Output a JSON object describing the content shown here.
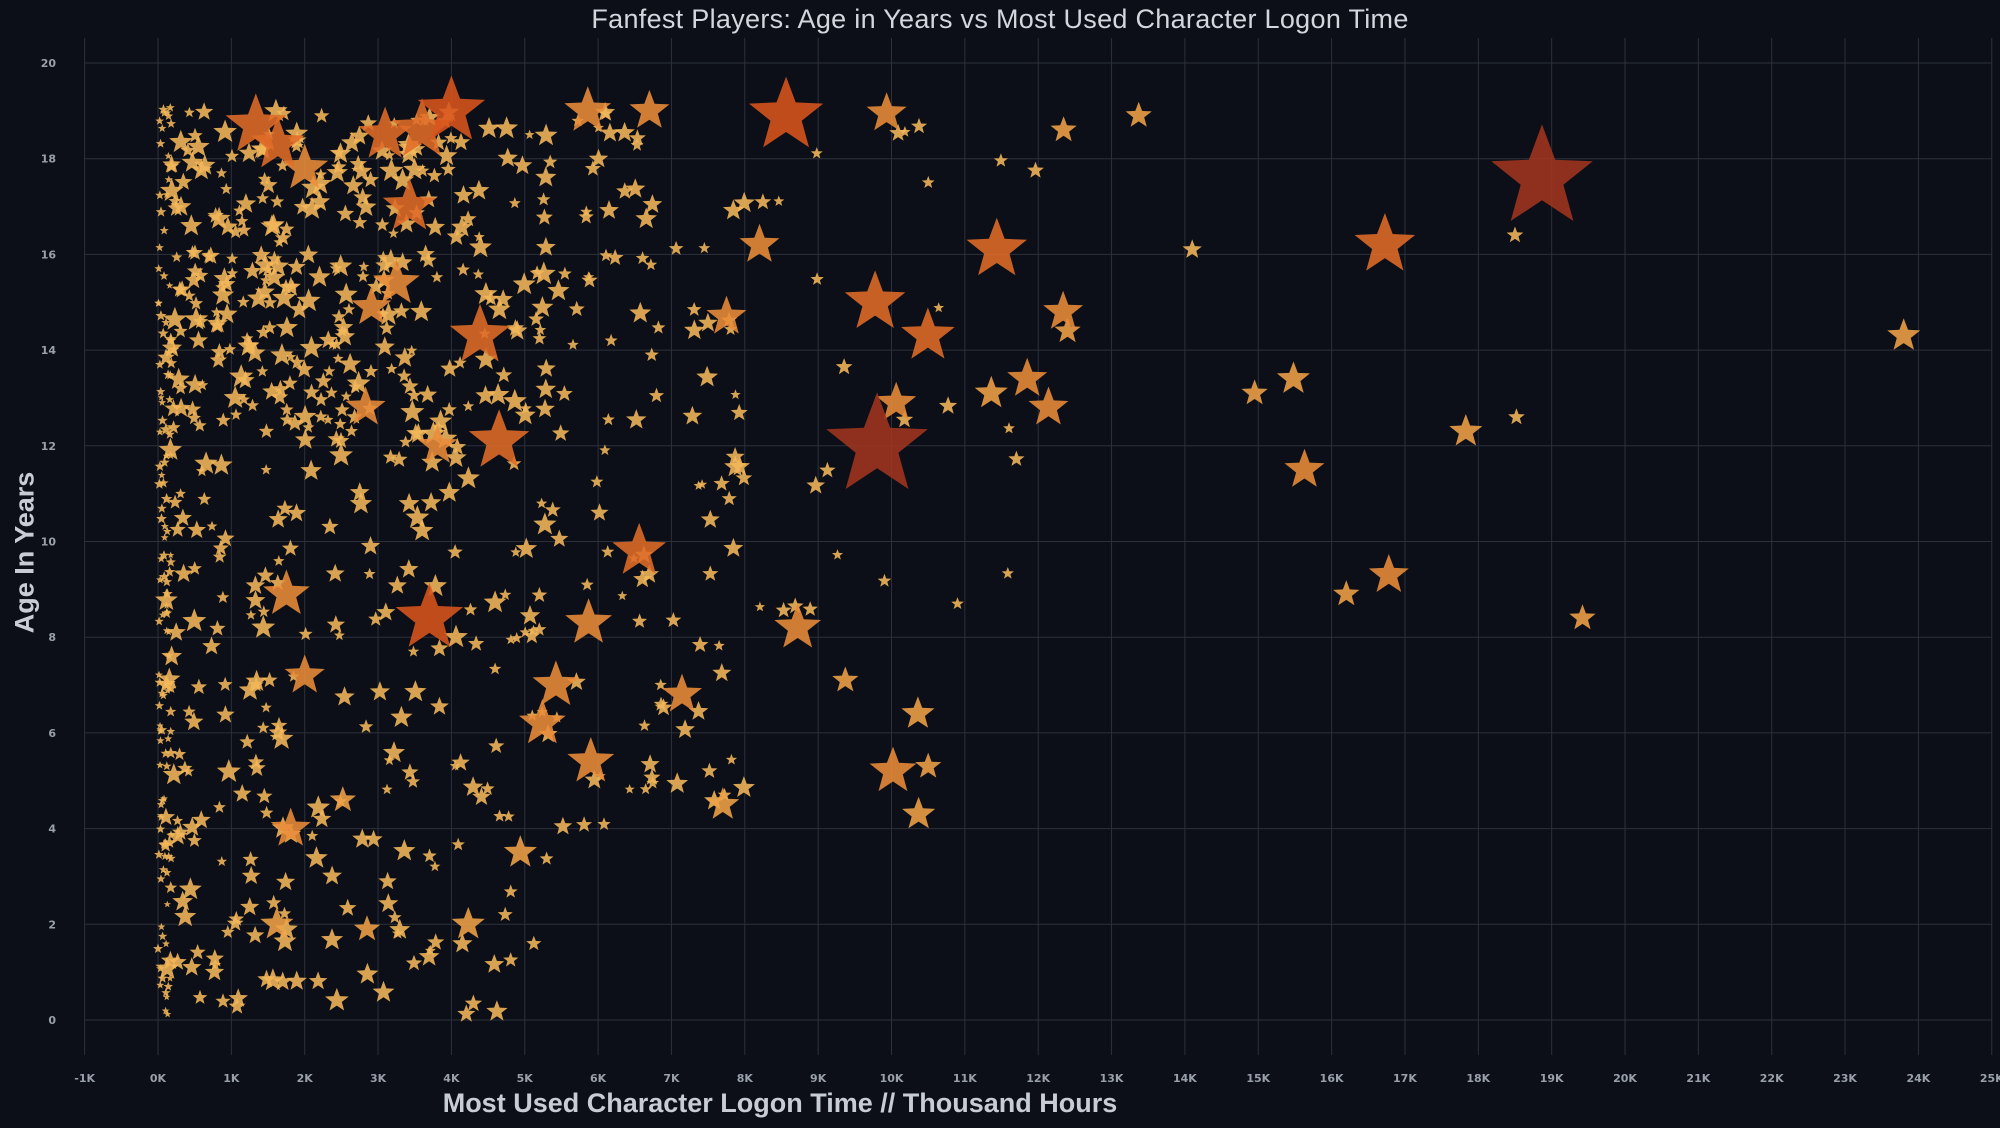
{
  "chart_data": {
    "type": "scatter",
    "marker": "star",
    "title": "Fanfest Players: Age in Years vs Most Used Character Logon Time",
    "xlabel": "Most Used Character Logon Time // Thousand Hours",
    "ylabel": "Age In Years",
    "xlim": [
      -1500,
      25000
    ],
    "ylim": [
      -0.9,
      20.5
    ],
    "x_ticks": [
      -1000,
      0,
      1000,
      2000,
      3000,
      4000,
      5000,
      6000,
      7000,
      8000,
      9000,
      10000,
      11000,
      12000,
      13000,
      14000,
      15000,
      16000,
      17000,
      18000,
      19000,
      20000,
      21000,
      22000,
      23000,
      24000,
      25000
    ],
    "x_tick_labels": [
      "-1K",
      "0K",
      "1K",
      "2K",
      "3K",
      "4K",
      "5K",
      "6K",
      "7K",
      "8K",
      "9K",
      "10K",
      "11K",
      "12K",
      "13K",
      "14K",
      "15K",
      "16K",
      "17K",
      "18K",
      "19K",
      "20K",
      "21K",
      "22K",
      "23K",
      "24K",
      "25K"
    ],
    "y_ticks": [
      0,
      2,
      4,
      6,
      8,
      10,
      12,
      14,
      16,
      18,
      20
    ],
    "y_tick_labels": [
      "0",
      "2",
      "4",
      "6",
      "8",
      "10",
      "12",
      "14",
      "16",
      "18",
      "20"
    ],
    "grid": true,
    "size_encoding": "star size and color scale with logon time weight (light yellow-orange = small, dark red = largest)",
    "colors": {
      "background": "#0c0f17",
      "small": "#f2b456",
      "medium": "#ea8a34",
      "large": "#dc5f22",
      "largest": "#a0361f",
      "grid": "#2b303b"
    },
    "points": [
      [
        1334,
        18.7,
        4
      ],
      [
        1633,
        18.3,
        3.5
      ],
      [
        2000,
        17.8,
        3
      ],
      [
        3096,
        18.5,
        3.5
      ],
      [
        3600,
        18.6,
        4
      ],
      [
        4000,
        19.0,
        4.5
      ],
      [
        5859,
        19.0,
        3
      ],
      [
        6700,
        19.0,
        2.5
      ],
      [
        8563,
        18.9,
        5
      ],
      [
        9933,
        18.95,
        2.5
      ],
      [
        13370,
        18.9,
        1.5
      ],
      [
        12346,
        18.6,
        1.5
      ],
      [
        8200,
        16.2,
        2.5
      ],
      [
        11435,
        16.1,
        4
      ],
      [
        16726,
        16.2,
        4
      ],
      [
        18869,
        17.6,
        7
      ],
      [
        14100,
        16.1,
        1
      ],
      [
        18500,
        16.4,
        0.8
      ],
      [
        3430,
        17.0,
        3.5
      ],
      [
        3250,
        15.4,
        3
      ],
      [
        2910,
        14.9,
        2.5
      ],
      [
        4390,
        14.3,
        4
      ],
      [
        9776,
        15.0,
        4
      ],
      [
        10496,
        14.3,
        3.5
      ],
      [
        7750,
        14.7,
        2.5
      ],
      [
        12340,
        14.8,
        2.5
      ],
      [
        12400,
        14.4,
        1.5
      ],
      [
        23800,
        14.3,
        2
      ],
      [
        11850,
        13.4,
        2.5
      ],
      [
        11360,
        13.1,
        2
      ],
      [
        12140,
        12.8,
        2.5
      ],
      [
        10064,
        12.9,
        2.5
      ],
      [
        9803,
        12.0,
        7
      ],
      [
        4650,
        12.1,
        4
      ],
      [
        3810,
        12.0,
        2.5
      ],
      [
        2830,
        12.8,
        2.5
      ],
      [
        15480,
        13.4,
        2
      ],
      [
        14950,
        13.1,
        1.5
      ],
      [
        15630,
        11.5,
        2.5
      ],
      [
        17830,
        12.3,
        2
      ],
      [
        18520,
        12.6,
        0.8
      ],
      [
        3700,
        8.4,
        4.5
      ],
      [
        1750,
        8.9,
        3
      ],
      [
        6560,
        9.8,
        3.5
      ],
      [
        5870,
        8.3,
        3
      ],
      [
        8721,
        8.2,
        3
      ],
      [
        16200,
        8.9,
        1.5
      ],
      [
        16780,
        9.3,
        2.5
      ],
      [
        19420,
        8.4,
        1.5
      ],
      [
        10900,
        8.7,
        0.5
      ],
      [
        2000,
        7.2,
        2.5
      ],
      [
        5425,
        7.0,
        3
      ],
      [
        7144,
        6.8,
        2.5
      ],
      [
        5240,
        6.2,
        3
      ],
      [
        5900,
        5.4,
        3
      ],
      [
        10020,
        5.2,
        3
      ],
      [
        10360,
        6.4,
        2
      ],
      [
        10370,
        4.3,
        2
      ],
      [
        10500,
        5.3,
        1.5
      ],
      [
        7700,
        4.5,
        2
      ],
      [
        9370,
        7.1,
        1.5
      ],
      [
        4230,
        2.0,
        2
      ],
      [
        1620,
        2.0,
        2
      ],
      [
        1809,
        4.0,
        2.5
      ],
      [
        4940,
        3.5,
        2
      ],
      [
        2850,
        1.9,
        1.5
      ],
      [
        2520,
        4.6,
        1.5
      ],
      [
        1700,
        0.8,
        1
      ],
      [
        460,
        1.1,
        1
      ],
      [
        770,
        1.0,
        1
      ]
    ],
    "note": "Dense cluster of several hundred small stars between 0K and 7K hours at ages 0-19 (generated procedurally in the rendering script)"
  }
}
